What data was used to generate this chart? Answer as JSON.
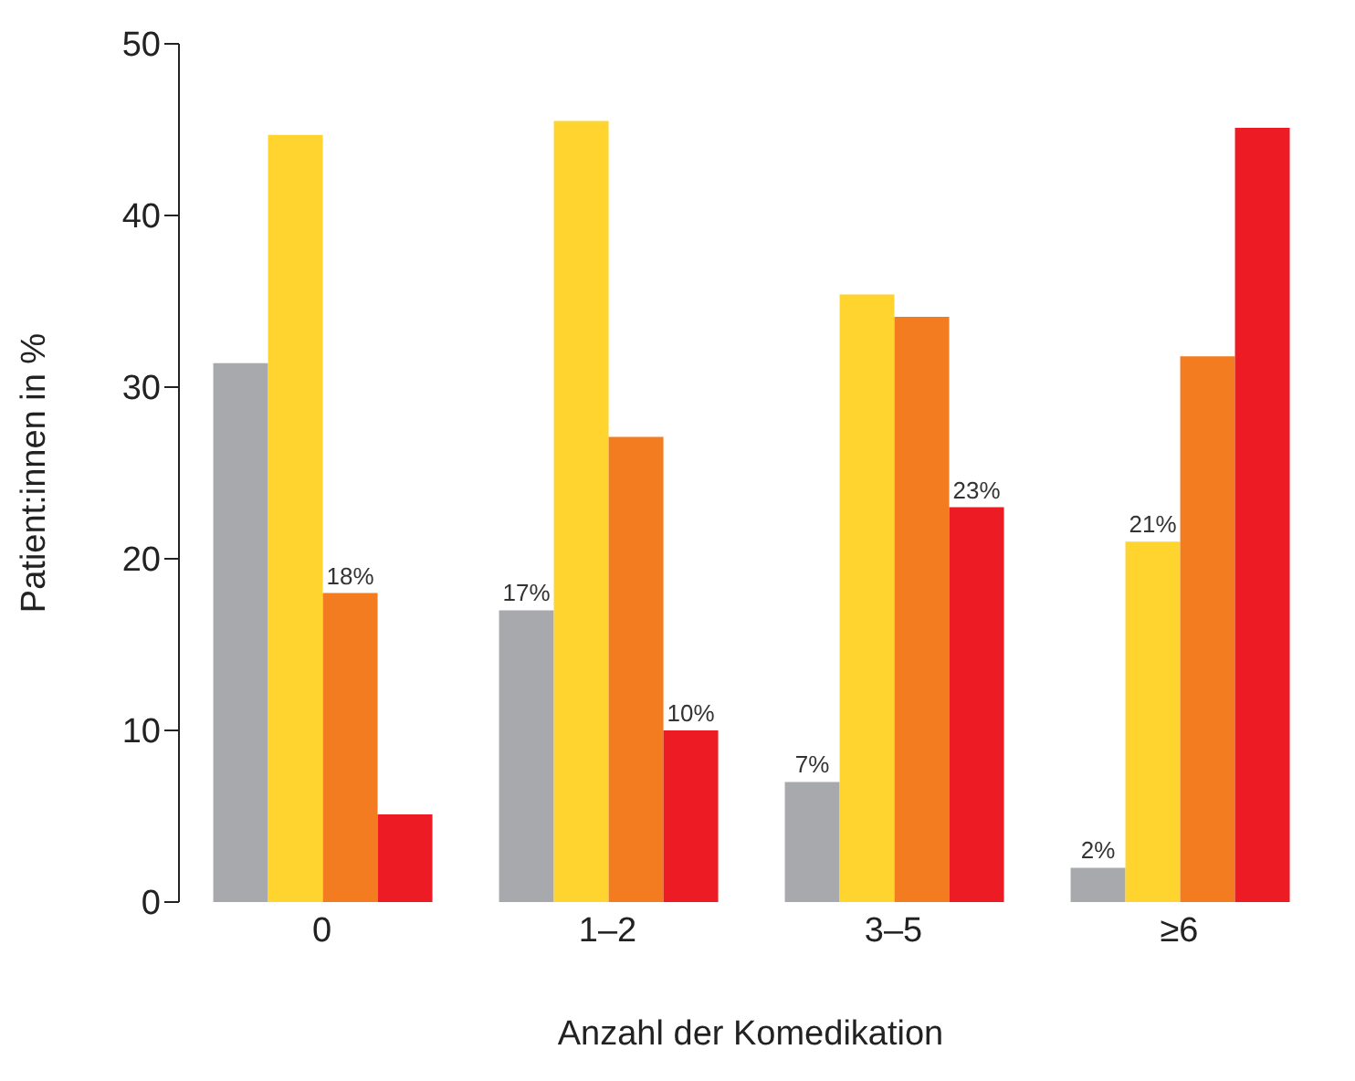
{
  "chart_data": {
    "type": "bar",
    "xlabel": "Anzahl der Komedikation",
    "ylabel": "Patient:innen in %",
    "categories": [
      "0",
      "1–2",
      "3–5",
      "≥6"
    ],
    "series": [
      {
        "color": "#a7a9ac",
        "values": [
          31.4,
          17,
          7,
          2
        ],
        "value_labels": [
          null,
          "17%",
          "7%",
          "2%"
        ]
      },
      {
        "color": "#ffd42e",
        "values": [
          44.7,
          45.5,
          35.4,
          21
        ],
        "value_labels": [
          null,
          null,
          null,
          "21%"
        ]
      },
      {
        "color": "#f47c20",
        "values": [
          18,
          27.1,
          34.1,
          31.8
        ],
        "value_labels": [
          "18%",
          null,
          null,
          null
        ]
      },
      {
        "color": "#ed1c24",
        "values": [
          5.1,
          10,
          23,
          45.1
        ],
        "value_labels": [
          null,
          "10%",
          "23%",
          null
        ]
      }
    ],
    "ylim": [
      0,
      50
    ],
    "yticks": [
      0,
      10,
      20,
      30,
      40,
      50
    ],
    "grid": false,
    "legend": false
  }
}
